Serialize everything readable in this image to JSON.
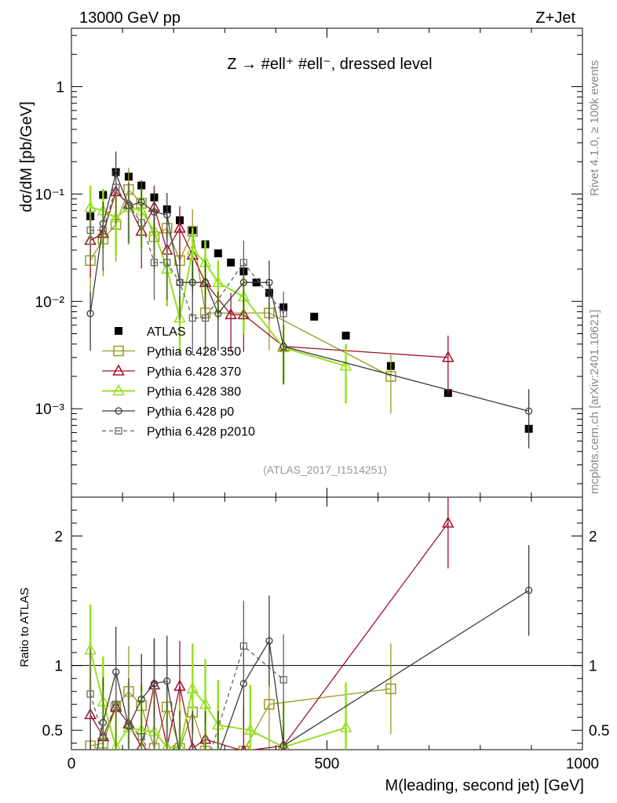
{
  "header": {
    "left": "13000 GeV pp",
    "right": "Z+Jet",
    "process": "Z → #ell⁺ #ell⁻, dressed level",
    "rivet": "Rivet 4.1.0, ≥ 100k events",
    "mcplots": "mcplots.cern.ch [arXiv:2401.10621]",
    "analysis": "(ATLAS_2017_I1514251)"
  },
  "colors": {
    "atlas": "#000000",
    "p350": "#9a9a20",
    "p370": "#a0102a",
    "p380": "#96e020",
    "p0": "#3c3c3c",
    "p2010": "#606060"
  },
  "chart_data": {
    "type": "scatter",
    "xlabel": "M(leading, second jet) [GeV]",
    "ylabel": "dσ/dM [pb/GeV]",
    "ratio_ylabel": "Ratio to ATLAS",
    "xlim": [
      0,
      1000
    ],
    "ylim": [
      0.00015,
      3.5
    ],
    "ratio_ylim": [
      0.35,
      2.3
    ],
    "yscale": "log",
    "xticks": [
      0,
      500,
      1000
    ],
    "yticks_main": [
      {
        "v": 1,
        "label": "1"
      },
      {
        "v": 0.1,
        "label": "10⁻¹"
      },
      {
        "v": 0.01,
        "label": "10⁻²"
      },
      {
        "v": 0.001,
        "label": "10⁻³"
      }
    ],
    "yticks_ratio": [
      {
        "v": 0.5,
        "label": "0.5"
      },
      {
        "v": 1,
        "label": "1"
      },
      {
        "v": 2,
        "label": "2"
      }
    ],
    "series": [
      {
        "name": "ATLAS",
        "key": "atlas",
        "marker": "square-filled",
        "points": [
          [
            37,
            0.062
          ],
          [
            62,
            0.098
          ],
          [
            87,
            0.16
          ],
          [
            112,
            0.145
          ],
          [
            137,
            0.12
          ],
          [
            162,
            0.093
          ],
          [
            187,
            0.072
          ],
          [
            212,
            0.057
          ],
          [
            237,
            0.046
          ],
          [
            262,
            0.034
          ],
          [
            287,
            0.028
          ],
          [
            312,
            0.023
          ],
          [
            337,
            0.019
          ],
          [
            362,
            0.015
          ],
          [
            387,
            0.012
          ],
          [
            415,
            0.0088
          ],
          [
            475,
            0.0072
          ],
          [
            537,
            0.0048
          ],
          [
            625,
            0.0025
          ],
          [
            737,
            0.0014
          ],
          [
            895,
            0.00065
          ]
        ]
      },
      {
        "name": "Pythia 6.428 350",
        "key": "p350",
        "marker": "square-open",
        "dash": false,
        "points": [
          [
            37,
            0.024
          ],
          [
            62,
            0.038
          ],
          [
            87,
            0.052
          ],
          [
            112,
            0.11
          ],
          [
            137,
            0.082
          ],
          [
            162,
            0.04
          ],
          [
            187,
            0.048
          ],
          [
            212,
            0.024
          ],
          [
            237,
            0.045
          ],
          [
            262,
            0.0078
          ],
          [
            387,
            0.0078
          ],
          [
            625,
            0.002
          ]
        ],
        "ratio": [
          [
            37,
            0.38
          ],
          [
            62,
            0.4
          ],
          [
            87,
            0.68
          ],
          [
            112,
            0.8
          ],
          [
            137,
            0.69
          ],
          [
            162,
            0.36
          ],
          [
            187,
            0.68
          ],
          [
            212,
            0.36
          ],
          [
            237,
            0.64
          ],
          [
            262,
            0.34
          ],
          [
            337,
            0.34
          ],
          [
            387,
            0.7
          ],
          [
            625,
            0.82
          ]
        ]
      },
      {
        "name": "Pythia 6.428 370",
        "key": "p370",
        "marker": "triangle-open",
        "dash": false,
        "points": [
          [
            37,
            0.037
          ],
          [
            62,
            0.043
          ],
          [
            87,
            0.105
          ],
          [
            112,
            0.08
          ],
          [
            137,
            0.045
          ],
          [
            162,
            0.075
          ],
          [
            187,
            0.03
          ],
          [
            212,
            0.048
          ],
          [
            237,
            0.027
          ],
          [
            262,
            0.015
          ],
          [
            312,
            0.0075
          ],
          [
            337,
            0.0075
          ],
          [
            415,
            0.0038
          ],
          [
            737,
            0.003
          ]
        ],
        "ratio": [
          [
            37,
            0.62
          ],
          [
            62,
            0.45
          ],
          [
            87,
            0.68
          ],
          [
            112,
            0.55
          ],
          [
            137,
            0.37
          ],
          [
            162,
            0.85
          ],
          [
            187,
            0.37
          ],
          [
            212,
            0.84
          ],
          [
            237,
            0.36
          ],
          [
            262,
            0.43
          ],
          [
            337,
            0.34
          ],
          [
            415,
            0.38
          ],
          [
            737,
            2.1
          ]
        ]
      },
      {
        "name": "Pythia 6.428 380",
        "key": "p380",
        "marker": "triangle-open",
        "dash": false,
        "points": [
          [
            37,
            0.075
          ],
          [
            62,
            0.07
          ],
          [
            87,
            0.06
          ],
          [
            112,
            0.075
          ],
          [
            137,
            0.07
          ],
          [
            162,
            0.045
          ],
          [
            187,
            0.02
          ],
          [
            212,
            0.007
          ],
          [
            237,
            0.03
          ],
          [
            262,
            0.023
          ],
          [
            287,
            0.015
          ],
          [
            337,
            0.011
          ],
          [
            415,
            0.0037
          ],
          [
            537,
            0.0025
          ]
        ],
        "ratio": [
          [
            37,
            1.12
          ],
          [
            62,
            0.72
          ],
          [
            87,
            0.37
          ],
          [
            112,
            0.52
          ],
          [
            137,
            0.5
          ],
          [
            162,
            0.49
          ],
          [
            187,
            0.37
          ],
          [
            212,
            0.37
          ],
          [
            237,
            0.82
          ],
          [
            262,
            0.7
          ],
          [
            287,
            0.54
          ],
          [
            350,
            0.5
          ],
          [
            415,
            0.37
          ],
          [
            537,
            0.52
          ]
        ]
      },
      {
        "name": "Pythia 6.428 p0",
        "key": "p0",
        "marker": "circle-open",
        "dash": false,
        "points": [
          [
            37,
            0.0077
          ],
          [
            62,
            0.053
          ],
          [
            87,
            0.155
          ],
          [
            112,
            0.078
          ],
          [
            137,
            0.084
          ],
          [
            162,
            0.068
          ],
          [
            187,
            0.064
          ],
          [
            212,
            0.015
          ],
          [
            237,
            0.015
          ],
          [
            262,
            0.015
          ],
          [
            287,
            0.0077
          ],
          [
            337,
            0.015
          ],
          [
            387,
            0.015
          ],
          [
            415,
            0.0038
          ],
          [
            895,
            0.00095
          ]
        ],
        "ratio": [
          [
            37,
            0.13
          ],
          [
            62,
            0.56
          ],
          [
            87,
            0.95
          ],
          [
            112,
            0.53
          ],
          [
            137,
            0.74
          ],
          [
            162,
            0.86
          ],
          [
            187,
            0.88
          ],
          [
            212,
            0.3
          ],
          [
            237,
            0.3
          ],
          [
            262,
            0.3
          ],
          [
            287,
            0.3
          ],
          [
            337,
            0.86
          ],
          [
            387,
            1.19
          ],
          [
            415,
            0.38
          ],
          [
            895,
            1.58
          ]
        ]
      },
      {
        "name": "Pythia 6.428 p2010",
        "key": "p2010",
        "marker": "square-open-small",
        "dash": true,
        "points": [
          [
            37,
            0.046
          ],
          [
            62,
            0.046
          ],
          [
            87,
            0.115
          ],
          [
            112,
            0.078
          ],
          [
            137,
            0.054
          ],
          [
            162,
            0.023
          ],
          [
            187,
            0.023
          ],
          [
            212,
            0.015
          ],
          [
            237,
            0.007
          ],
          [
            262,
            0.007
          ],
          [
            337,
            0.023
          ],
          [
            415,
            0.0077
          ]
        ],
        "ratio": [
          [
            37,
            0.78
          ],
          [
            62,
            0.45
          ],
          [
            87,
            0.7
          ],
          [
            112,
            0.54
          ],
          [
            137,
            0.45
          ],
          [
            162,
            0.25
          ],
          [
            187,
            0.32
          ],
          [
            212,
            0.26
          ],
          [
            237,
            0.15
          ],
          [
            262,
            0.2
          ],
          [
            337,
            1.15
          ],
          [
            415,
            0.89
          ]
        ]
      }
    ]
  }
}
